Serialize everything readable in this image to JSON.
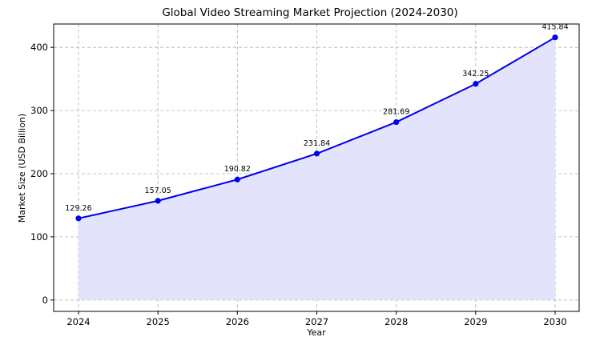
{
  "chart_data": {
    "type": "area",
    "title": "Global Video Streaming Market Projection (2024-2030)",
    "xlabel": "Year",
    "ylabel": "Market Size (USD Billion)",
    "categories": [
      "2024",
      "2025",
      "2026",
      "2027",
      "2028",
      "2029",
      "2030"
    ],
    "series": [
      {
        "values": [
          129.26,
          157.05,
          190.82,
          231.84,
          281.69,
          342.25,
          415.84
        ],
        "data_labels": [
          "129.26",
          "157.05",
          "190.82",
          "231.84",
          "281.69",
          "342.25",
          "415.84"
        ]
      }
    ],
    "yticks": [
      "0",
      "100",
      "200",
      "300",
      "400"
    ],
    "ytick_values": [
      0,
      100,
      200,
      300,
      400
    ],
    "ylim": [
      -18,
      437
    ],
    "grid": true,
    "colors": {
      "line": "#0000ee",
      "marker": "#0000ee",
      "fill": "#e3e3fb"
    }
  }
}
